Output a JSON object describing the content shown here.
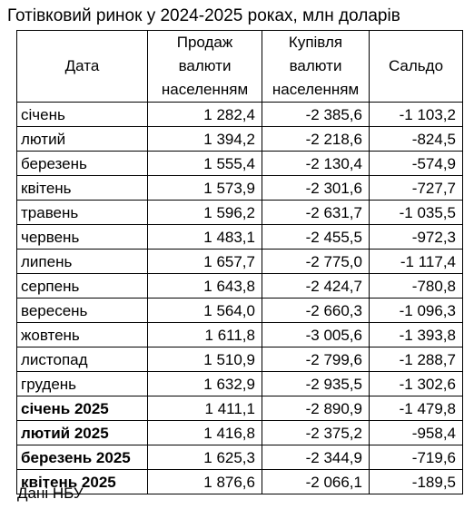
{
  "title": "Готівковий ринок у 2024-2025 роках, млн доларів",
  "columns": {
    "date": "Дата",
    "sales": [
      "Продаж",
      "валюти",
      "населенням"
    ],
    "purchases": [
      "Купівля",
      "валюти",
      "населенням"
    ],
    "balance": "Сальдо"
  },
  "rows": [
    {
      "month": "січень",
      "sales": "1 282,4",
      "purchases": "-2 385,6",
      "balance": "-1 103,2",
      "bold": false
    },
    {
      "month": "лютий",
      "sales": "1 394,2",
      "purchases": "-2 218,6",
      "balance": "-824,5",
      "bold": false
    },
    {
      "month": "березень",
      "sales": "1 555,4",
      "purchases": "-2 130,4",
      "balance": "-574,9",
      "bold": false
    },
    {
      "month": "квітень",
      "sales": "1 573,9",
      "purchases": "-2 301,6",
      "balance": "-727,7",
      "bold": false
    },
    {
      "month": "травень",
      "sales": "1 596,2",
      "purchases": "-2 631,7",
      "balance": "-1 035,5",
      "bold": false
    },
    {
      "month": "червень",
      "sales": "1 483,1",
      "purchases": "-2 455,5",
      "balance": "-972,3",
      "bold": false
    },
    {
      "month": "липень",
      "sales": "1 657,7",
      "purchases": "-2 775,0",
      "balance": "-1 117,4",
      "bold": false
    },
    {
      "month": "серпень",
      "sales": "1 643,8",
      "purchases": "-2 424,7",
      "balance": "-780,8",
      "bold": false
    },
    {
      "month": "вересень",
      "sales": "1 564,0",
      "purchases": "-2 660,3",
      "balance": "-1 096,3",
      "bold": false
    },
    {
      "month": "жовтень",
      "sales": "1 611,8",
      "purchases": "-3 005,6",
      "balance": "-1 393,8",
      "bold": false
    },
    {
      "month": "листопад",
      "sales": "1 510,9",
      "purchases": "-2 799,6",
      "balance": "-1 288,7",
      "bold": false
    },
    {
      "month": "грудень",
      "sales": "1 632,9",
      "purchases": "-2 935,5",
      "balance": "-1 302,6",
      "bold": false
    },
    {
      "month": "січень 2025",
      "sales": "1 411,1",
      "purchases": "-2 890,9",
      "balance": "-1 479,8",
      "bold": true
    },
    {
      "month": "лютий 2025",
      "sales": "1 416,8",
      "purchases": "-2 375,2",
      "balance": "-958,4",
      "bold": true
    },
    {
      "month": "березень 2025",
      "sales": "1 625,3",
      "purchases": "-2 344,9",
      "balance": "-719,6",
      "bold": true
    },
    {
      "month": "квітень 2025",
      "sales": "1 876,6",
      "purchases": "-2 066,1",
      "balance": "-189,5",
      "bold": true
    }
  ],
  "source": "Дані НБУ"
}
